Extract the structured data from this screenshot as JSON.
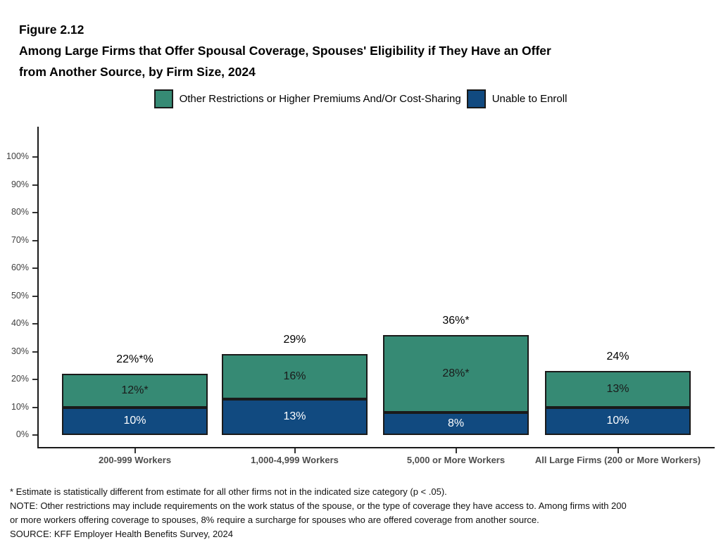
{
  "figure": {
    "label": "Figure 2.12",
    "title_line1": "Among Large Firms that Offer Spousal Coverage, Spouses' Eligibility if They Have an Offer",
    "title_line2": "from Another Source, by Firm Size, 2024"
  },
  "legend": [
    {
      "label": "Other Restrictions or Higher Premiums And/Or Cost-Sharing",
      "color": "#368A74"
    },
    {
      "label": "Unable to Enroll",
      "color": "#114A80"
    }
  ],
  "chart_data": {
    "type": "stacked-bar",
    "title": "Among Large Firms that Offer Spousal Coverage, Spouses' Eligibility if They Have an Offer from Another Source, by Firm Size, 2024",
    "categories": [
      "200-999 Workers",
      "1,000-4,999 Workers",
      "5,000 or More Workers",
      "All Large Firms (200 or More Workers)"
    ],
    "series": [
      {
        "name": "Unable to Enroll",
        "color": "#114A80",
        "label_color": "#ffffff",
        "values": [
          10,
          13,
          8,
          10
        ],
        "labels": [
          "10%",
          "13%",
          "8%",
          "10%"
        ]
      },
      {
        "name": "Other Restrictions or Higher Premiums And/Or Cost-Sharing",
        "color": "#368A74",
        "label_color": "#1a1a1a",
        "values": [
          12,
          16,
          28,
          13
        ],
        "labels": [
          "12%*",
          "16%",
          "28%*",
          "13%"
        ]
      }
    ],
    "totals": {
      "values": [
        22,
        29,
        36,
        24
      ],
      "labels": [
        "22%*%",
        "29%",
        "36%*",
        "24%"
      ]
    },
    "y_axis": {
      "min": 0,
      "max": 100,
      "step": 10,
      "tick_suffix": "%"
    },
    "legend_position": "top",
    "grid": false
  },
  "footnotes": [
    "* Estimate is statistically different from estimate for all other firms not in the indicated size category (p < .05).",
    "NOTE: Other restrictions may include requirements on the work status of the spouse, or the type of coverage they have access to. Among firms with 200",
    "or more workers offering coverage to spouses, 8% require a surcharge for spouses who are offered coverage from another source.",
    "SOURCE: KFF Employer Health Benefits Survey, 2024"
  ]
}
